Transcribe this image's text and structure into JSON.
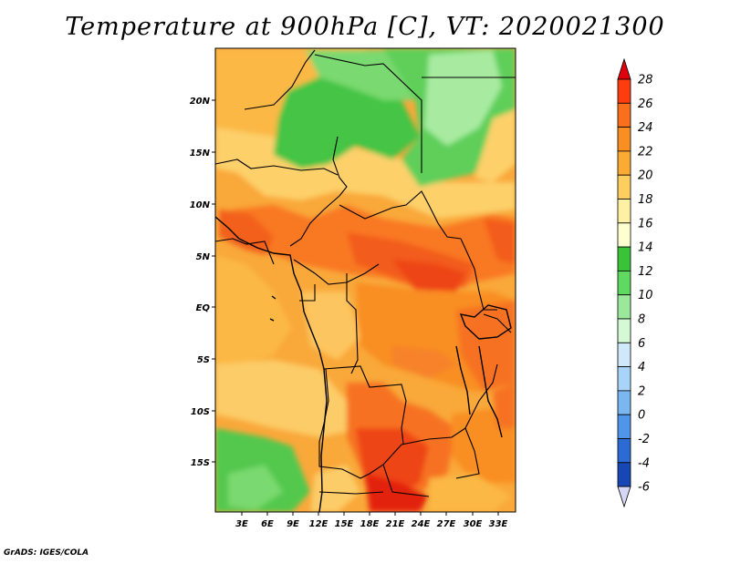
{
  "title": "Temperature at 900hPa [C], VT: 2020021300",
  "credit": "GrADS: IGES/COLA",
  "lat_ticks": [
    "20N",
    "15N",
    "10N",
    "5N",
    "EQ",
    "5S",
    "10S",
    "15S"
  ],
  "lon_ticks": [
    "3E",
    "6E",
    "9E",
    "12E",
    "15E",
    "18E",
    "21E",
    "24E",
    "27E",
    "30E",
    "33E"
  ],
  "colorbar": {
    "labels": [
      "28",
      "26",
      "24",
      "22",
      "20",
      "18",
      "16",
      "14",
      "12",
      "10",
      "8",
      "6",
      "4",
      "2",
      "0",
      "-2",
      "-4",
      "-6"
    ],
    "colors": [
      "#e3000d",
      "#fe3c10",
      "#f96f1c",
      "#f98e22",
      "#fbab34",
      "#fecf5e",
      "#fff1a3",
      "#fdffd0",
      "#39c339",
      "#5fd95f",
      "#9be89b",
      "#d5f9d5",
      "#cfe9fb",
      "#a8d4f9",
      "#7ab6f0",
      "#4f96e8",
      "#2c6ad4",
      "#1747b5",
      "#0e2490",
      "#d6d6f5"
    ]
  },
  "chart_data": {
    "type": "heatmap",
    "title": "Temperature at 900hPa [C], VT: 2020021300",
    "variable": "Temperature at 900hPa",
    "units": "C",
    "valid_time": "2020021300",
    "lon_range": [
      0,
      34
    ],
    "lat_range": [
      -20,
      25
    ],
    "lat_ticks": [
      "20N",
      "15N",
      "10N",
      "5N",
      "EQ",
      "5S",
      "10S",
      "15S"
    ],
    "lon_ticks": [
      "3E",
      "6E",
      "9E",
      "12E",
      "15E",
      "18E",
      "21E",
      "24E",
      "27E",
      "30E",
      "33E"
    ],
    "contour_levels": [
      -6,
      -4,
      -2,
      0,
      2,
      4,
      6,
      8,
      10,
      12,
      14,
      16,
      18,
      20,
      22,
      24,
      26,
      28
    ]
  }
}
